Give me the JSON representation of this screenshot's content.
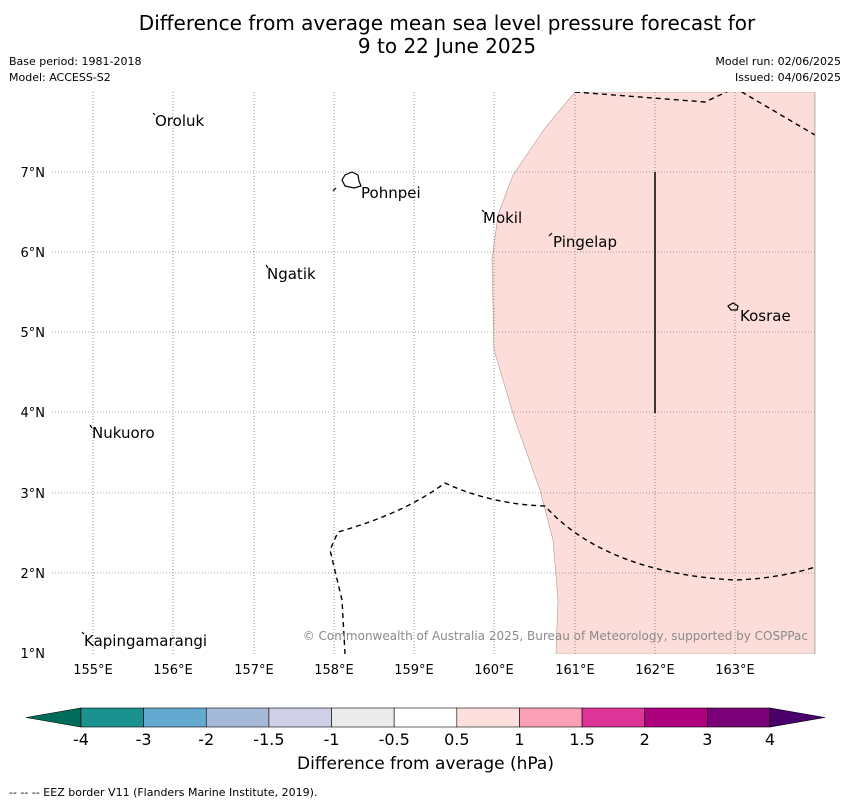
{
  "header": {
    "title_line1": "Difference from average mean sea level pressure forecast for",
    "title_line2": "9 to 22 June 2025",
    "base_period": "Base period: 1981-2018",
    "model": "Model: ACCESS-S2",
    "model_run": "Model run: 02/06/2025",
    "issued": "Issued: 04/06/2025"
  },
  "map": {
    "lon_ticks": [
      "155°E",
      "156°E",
      "157°E",
      "158°E",
      "159°E",
      "160°E",
      "161°E",
      "162°E",
      "163°E"
    ],
    "lat_ticks": [
      "1°N",
      "2°N",
      "3°N",
      "4°N",
      "5°N",
      "6°N",
      "7°N"
    ],
    "places": [
      {
        "name": "Oroluk"
      },
      {
        "name": "Pohnpei"
      },
      {
        "name": "Mokil"
      },
      {
        "name": "Pingelap"
      },
      {
        "name": "Ngatik"
      },
      {
        "name": "Kosrae"
      },
      {
        "name": "Nukuoro"
      },
      {
        "name": "Kapingamarangi"
      }
    ],
    "copyright": "© Commonwealth of Australia 2025, Bureau of Meteorology, supported by COSPPac",
    "anomaly_fill_color": "#fdddda"
  },
  "colorbar": {
    "label": "Difference from average (hPa)",
    "tick_labels": [
      "-4",
      "-3",
      "-2",
      "-1.5",
      "-1",
      "-0.5",
      "0.5",
      "1",
      "1.5",
      "2",
      "3",
      "4"
    ],
    "colors": [
      "#1b9290",
      "#63a9d0",
      "#a5b9d9",
      "#cfd0e6",
      "#ebebeb",
      "#ffffff",
      "#fddfdd",
      "#fa9fb5",
      "#dd3497",
      "#ae017e",
      "#7a0177"
    ],
    "under_color": "#016c59",
    "over_color": "#49006a"
  },
  "footnote": "--  --  -- EEZ border V11 (Flanders Marine Institute, 2019)."
}
